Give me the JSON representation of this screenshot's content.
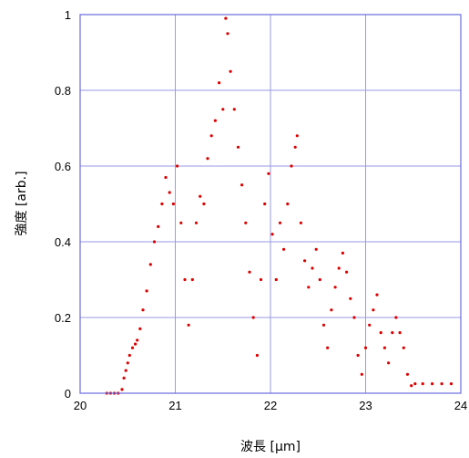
{
  "chart_data": {
    "type": "scatter",
    "xlabel": "波長 [μm]",
    "ylabel": "強度 [arb.]",
    "xlim": [
      20,
      24
    ],
    "ylim": [
      0,
      1
    ],
    "x_ticks": [
      "20",
      "21",
      "22",
      "23",
      "24"
    ],
    "y_ticks": [
      "0",
      "0.2",
      "0.4",
      "0.6",
      "0.8",
      "1"
    ],
    "grid": true,
    "colors": {
      "points": "#dd0000",
      "grid": "#9a9ae6",
      "frame": "#6a6ae0"
    },
    "series": [
      {
        "points": [
          [
            20.28,
            0.0
          ],
          [
            20.32,
            0.0
          ],
          [
            20.36,
            0.0
          ],
          [
            20.4,
            0.0
          ],
          [
            20.44,
            0.01
          ],
          [
            20.46,
            0.04
          ],
          [
            20.48,
            0.06
          ],
          [
            20.5,
            0.08
          ],
          [
            20.52,
            0.1
          ],
          [
            20.55,
            0.12
          ],
          [
            20.58,
            0.13
          ],
          [
            20.6,
            0.14
          ],
          [
            20.63,
            0.17
          ],
          [
            20.66,
            0.22
          ],
          [
            20.7,
            0.27
          ],
          [
            20.74,
            0.34
          ],
          [
            20.78,
            0.4
          ],
          [
            20.82,
            0.44
          ],
          [
            20.86,
            0.5
          ],
          [
            20.9,
            0.57
          ],
          [
            20.94,
            0.53
          ],
          [
            20.98,
            0.5
          ],
          [
            21.02,
            0.6
          ],
          [
            21.06,
            0.45
          ],
          [
            21.1,
            0.3
          ],
          [
            21.14,
            0.18
          ],
          [
            21.18,
            0.3
          ],
          [
            21.22,
            0.45
          ],
          [
            21.26,
            0.52
          ],
          [
            21.3,
            0.5
          ],
          [
            21.34,
            0.62
          ],
          [
            21.38,
            0.68
          ],
          [
            21.42,
            0.72
          ],
          [
            21.46,
            0.82
          ],
          [
            21.5,
            0.75
          ],
          [
            21.53,
            0.99
          ],
          [
            21.55,
            0.95
          ],
          [
            21.58,
            0.85
          ],
          [
            21.62,
            0.75
          ],
          [
            21.66,
            0.65
          ],
          [
            21.7,
            0.55
          ],
          [
            21.74,
            0.45
          ],
          [
            21.78,
            0.32
          ],
          [
            21.82,
            0.2
          ],
          [
            21.86,
            0.1
          ],
          [
            21.9,
            0.3
          ],
          [
            21.94,
            0.5
          ],
          [
            21.98,
            0.58
          ],
          [
            22.02,
            0.42
          ],
          [
            22.06,
            0.3
          ],
          [
            22.1,
            0.45
          ],
          [
            22.14,
            0.38
          ],
          [
            22.18,
            0.5
          ],
          [
            22.22,
            0.6
          ],
          [
            22.26,
            0.65
          ],
          [
            22.28,
            0.68
          ],
          [
            22.32,
            0.45
          ],
          [
            22.36,
            0.35
          ],
          [
            22.4,
            0.28
          ],
          [
            22.44,
            0.33
          ],
          [
            22.48,
            0.38
          ],
          [
            22.52,
            0.3
          ],
          [
            22.56,
            0.18
          ],
          [
            22.6,
            0.12
          ],
          [
            22.64,
            0.22
          ],
          [
            22.68,
            0.28
          ],
          [
            22.72,
            0.33
          ],
          [
            22.76,
            0.37
          ],
          [
            22.8,
            0.32
          ],
          [
            22.84,
            0.25
          ],
          [
            22.88,
            0.2
          ],
          [
            22.92,
            0.1
          ],
          [
            22.96,
            0.05
          ],
          [
            23.0,
            0.12
          ],
          [
            23.04,
            0.18
          ],
          [
            23.08,
            0.22
          ],
          [
            23.12,
            0.26
          ],
          [
            23.16,
            0.16
          ],
          [
            23.2,
            0.12
          ],
          [
            23.24,
            0.08
          ],
          [
            23.28,
            0.16
          ],
          [
            23.32,
            0.2
          ],
          [
            23.36,
            0.16
          ],
          [
            23.4,
            0.12
          ],
          [
            23.44,
            0.05
          ],
          [
            23.48,
            0.02
          ],
          [
            23.52,
            0.025
          ],
          [
            23.6,
            0.025
          ],
          [
            23.7,
            0.025
          ],
          [
            23.8,
            0.025
          ],
          [
            23.9,
            0.025
          ]
        ]
      }
    ]
  }
}
